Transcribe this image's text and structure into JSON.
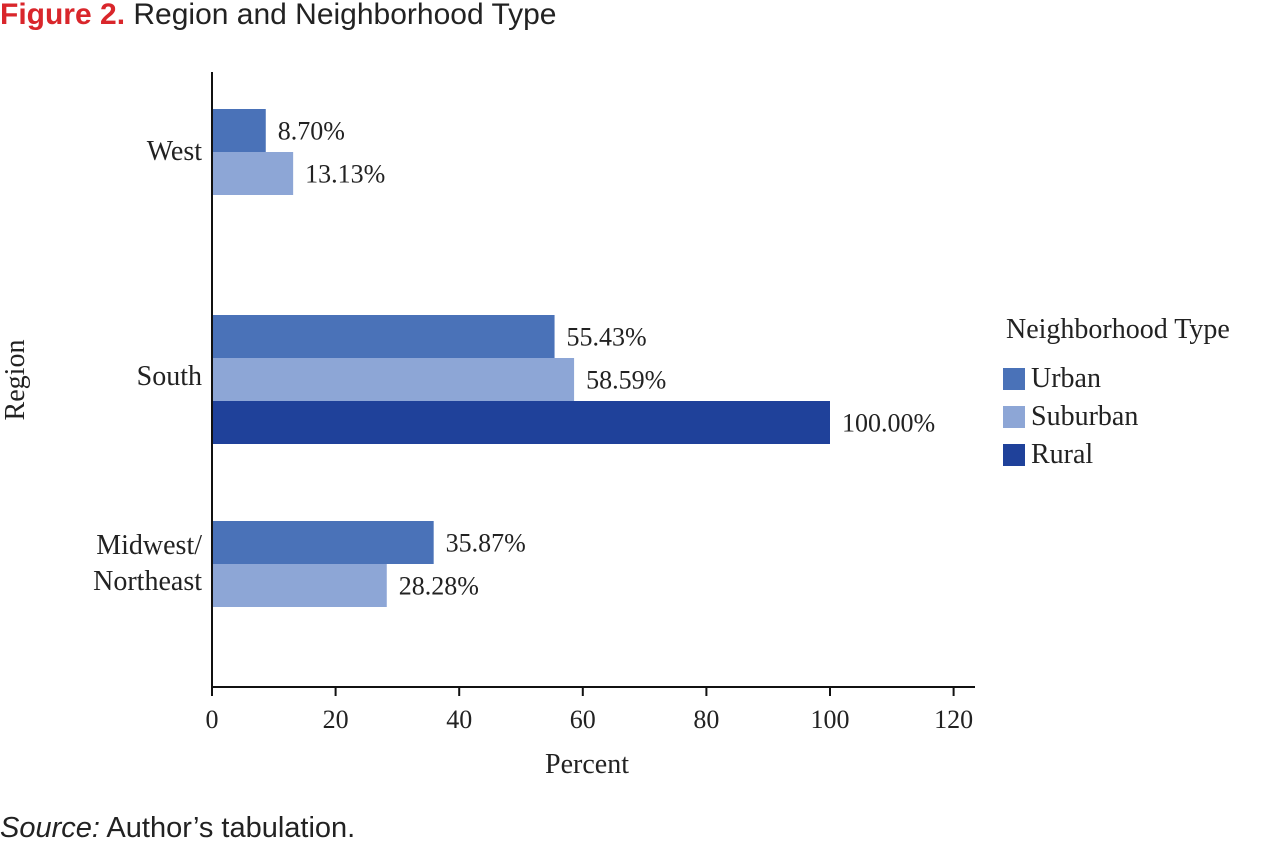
{
  "figure": {
    "number": "Figure 2.",
    "title": "Region and Neighborhood Type"
  },
  "source": {
    "label": "Source:",
    "text": "Author’s tabulation."
  },
  "chart_data": {
    "type": "bar",
    "orientation": "horizontal",
    "title": "Figure 2. Region and Neighborhood Type",
    "xlabel": "Percent",
    "ylabel": "Region",
    "xlim": [
      0,
      120
    ],
    "xticks": [
      0,
      20,
      40,
      60,
      80,
      100,
      120
    ],
    "categories": [
      {
        "label_lines": [
          "West"
        ]
      },
      {
        "label_lines": [
          "South"
        ]
      },
      {
        "label_lines": [
          "Midwest/",
          "Northeast"
        ]
      }
    ],
    "series": [
      {
        "name": "Urban",
        "color": "#4a72b8",
        "values": [
          8.7,
          55.43,
          35.87
        ],
        "labels": [
          "8.70%",
          "55.43%",
          "35.87%"
        ]
      },
      {
        "name": "Suburban",
        "color": "#8da6d6",
        "values": [
          13.13,
          58.59,
          28.28
        ],
        "labels": [
          "13.13%",
          "58.59%",
          "28.28%"
        ]
      },
      {
        "name": "Rural",
        "color": "#1f419a",
        "values": [
          null,
          100.0,
          null
        ],
        "labels": [
          null,
          "100.00%",
          null
        ]
      }
    ],
    "legend": {
      "title": "Neighborhood Type",
      "position": "right"
    },
    "grid": false
  }
}
